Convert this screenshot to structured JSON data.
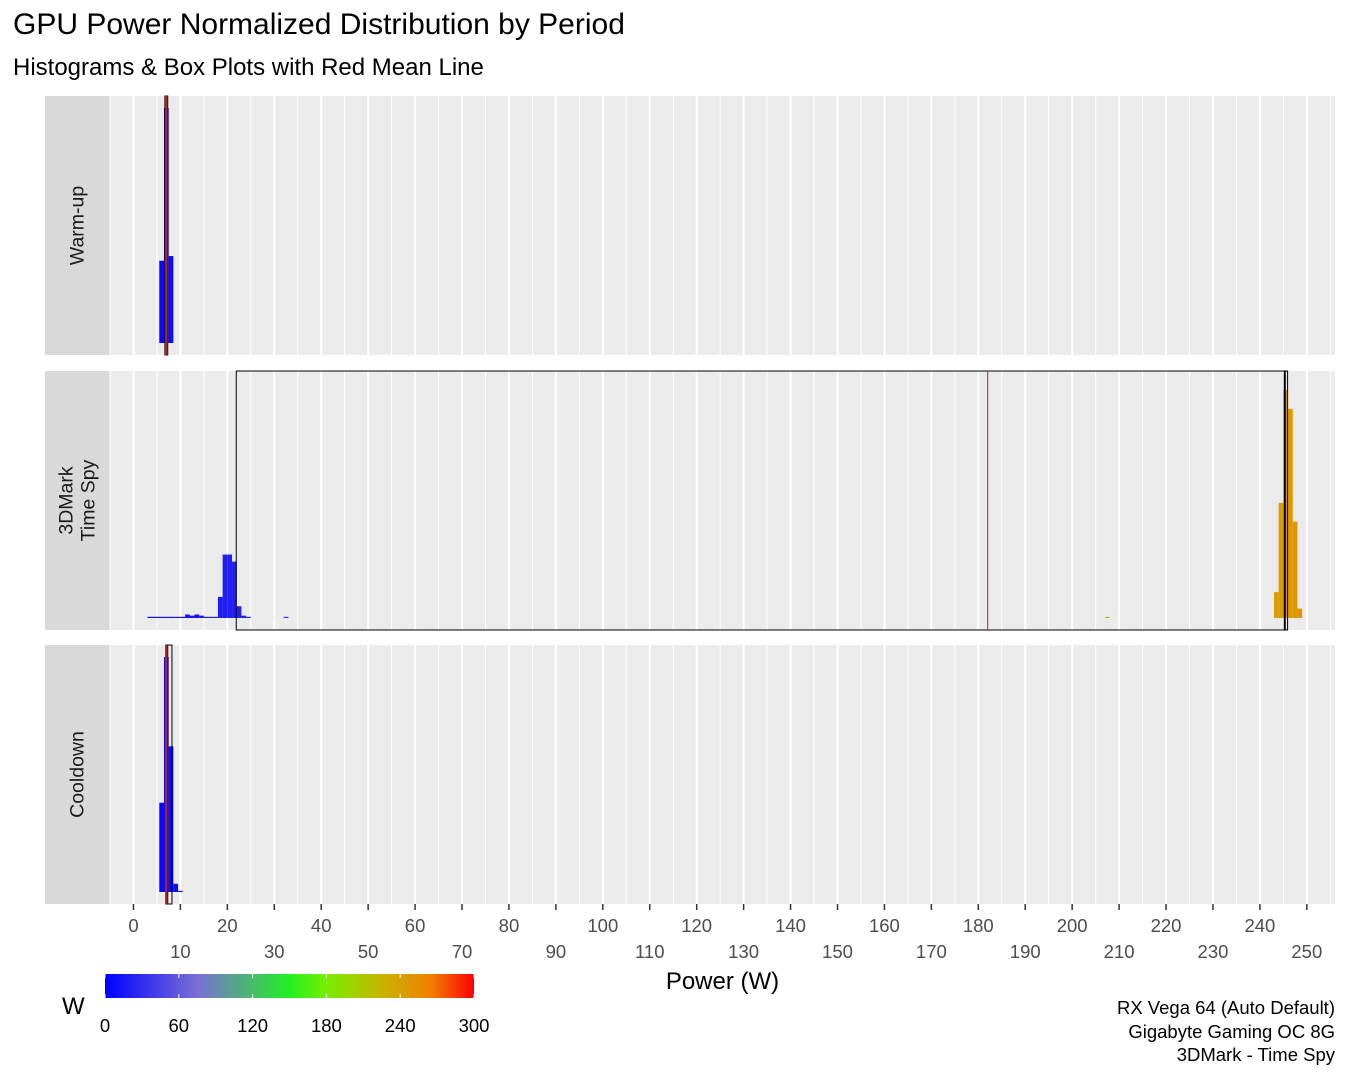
{
  "title": "GPU Power Normalized Distribution by Period",
  "subtitle": "Histograms & Box Plots with Red Mean Line",
  "caption": [
    "RX Vega 64 (Auto Default)",
    "Gigabyte Gaming OC 8G",
    "3DMark - Time Spy"
  ],
  "colors": {
    "panel_bg": "#ebebeb",
    "strip_bg": "#d9d9d9",
    "mean_line": "#b22222",
    "box_border": "#000000"
  },
  "chart_data": {
    "type": "histogram",
    "xlabel": "Power (W)",
    "ylabel": "",
    "xlim": [
      -5,
      256
    ],
    "x_ticks_upper": [
      0,
      20,
      40,
      60,
      80,
      100,
      120,
      140,
      160,
      180,
      200,
      220,
      240
    ],
    "x_ticks_lower": [
      10,
      30,
      50,
      70,
      90,
      110,
      130,
      150,
      170,
      190,
      210,
      230,
      250
    ],
    "grid": true,
    "facets": [
      {
        "label": "Warm-up",
        "mean": 7.0,
        "box": {
          "q1": 6.7,
          "median": 7.0,
          "q3": 7.3
        },
        "bins": [
          {
            "x0": 5.5,
            "x1": 6.5,
            "density": 0.35
          },
          {
            "x0": 6.5,
            "x1": 7.5,
            "density": 1.0
          },
          {
            "x0": 7.5,
            "x1": 8.5,
            "density": 0.37
          }
        ]
      },
      {
        "label": "3DMark\nTime Spy",
        "mean": 182.0,
        "box": {
          "q1": 21.9,
          "median": 245.3,
          "q3": 245.9
        },
        "bins": [
          {
            "x0": 3.0,
            "x1": 4.0,
            "density": 0.005
          },
          {
            "x0": 4.0,
            "x1": 5.0,
            "density": 0.005
          },
          {
            "x0": 5.0,
            "x1": 6.0,
            "density": 0.005
          },
          {
            "x0": 6.0,
            "x1": 7.0,
            "density": 0.005
          },
          {
            "x0": 7.0,
            "x1": 8.0,
            "density": 0.005
          },
          {
            "x0": 8.0,
            "x1": 9.0,
            "density": 0.005
          },
          {
            "x0": 9.0,
            "x1": 10.0,
            "density": 0.005
          },
          {
            "x0": 10.0,
            "x1": 11.0,
            "density": 0.005
          },
          {
            "x0": 11.0,
            "x1": 12.0,
            "density": 0.015
          },
          {
            "x0": 12.0,
            "x1": 13.0,
            "density": 0.01
          },
          {
            "x0": 13.0,
            "x1": 14.0,
            "density": 0.015
          },
          {
            "x0": 14.0,
            "x1": 15.0,
            "density": 0.01
          },
          {
            "x0": 15.0,
            "x1": 16.0,
            "density": 0.005
          },
          {
            "x0": 16.0,
            "x1": 17.0,
            "density": 0.005
          },
          {
            "x0": 17.0,
            "x1": 18.0,
            "density": 0.005
          },
          {
            "x0": 18.0,
            "x1": 19.0,
            "density": 0.09
          },
          {
            "x0": 19.0,
            "x1": 20.0,
            "density": 0.27
          },
          {
            "x0": 20.0,
            "x1": 21.0,
            "density": 0.27
          },
          {
            "x0": 21.0,
            "x1": 22.0,
            "density": 0.24
          },
          {
            "x0": 22.0,
            "x1": 23.0,
            "density": 0.05
          },
          {
            "x0": 23.0,
            "x1": 24.0,
            "density": 0.01
          },
          {
            "x0": 24.0,
            "x1": 25.0,
            "density": 0.005
          },
          {
            "x0": 32.0,
            "x1": 33.0,
            "density": 0.005
          },
          {
            "x0": 207.0,
            "x1": 208.0,
            "density": 0.005
          },
          {
            "x0": 243.0,
            "x1": 244.0,
            "density": 0.11
          },
          {
            "x0": 244.0,
            "x1": 245.0,
            "density": 0.49
          },
          {
            "x0": 245.0,
            "x1": 246.0,
            "density": 0.97
          },
          {
            "x0": 246.0,
            "x1": 247.0,
            "density": 0.89
          },
          {
            "x0": 247.0,
            "x1": 248.0,
            "density": 0.41
          },
          {
            "x0": 248.0,
            "x1": 249.0,
            "density": 0.04
          }
        ]
      },
      {
        "label": "Cooldown",
        "mean": 7.0,
        "box": {
          "q1": 6.9,
          "median": 7.2,
          "q3": 8.2
        },
        "bins": [
          {
            "x0": 5.5,
            "x1": 6.5,
            "density": 0.38
          },
          {
            "x0": 6.5,
            "x1": 7.5,
            "density": 1.0
          },
          {
            "x0": 7.5,
            "x1": 8.5,
            "density": 0.62
          },
          {
            "x0": 8.5,
            "x1": 9.5,
            "density": 0.035
          },
          {
            "x0": 9.5,
            "x1": 10.5,
            "density": 0.005
          }
        ]
      }
    ],
    "colorbar": {
      "title": "W",
      "ticks": [
        0,
        60,
        120,
        180,
        240,
        300
      ],
      "range": [
        0,
        300
      ],
      "stops": [
        {
          "value": 0,
          "color": "#0000ff"
        },
        {
          "value": 75,
          "color": "#7b6fd6"
        },
        {
          "value": 150,
          "color": "#22f022"
        },
        {
          "value": 180,
          "color": "#77ee00"
        },
        {
          "value": 225,
          "color": "#c8b400"
        },
        {
          "value": 265,
          "color": "#f08000"
        },
        {
          "value": 300,
          "color": "#ff0000"
        }
      ]
    }
  }
}
